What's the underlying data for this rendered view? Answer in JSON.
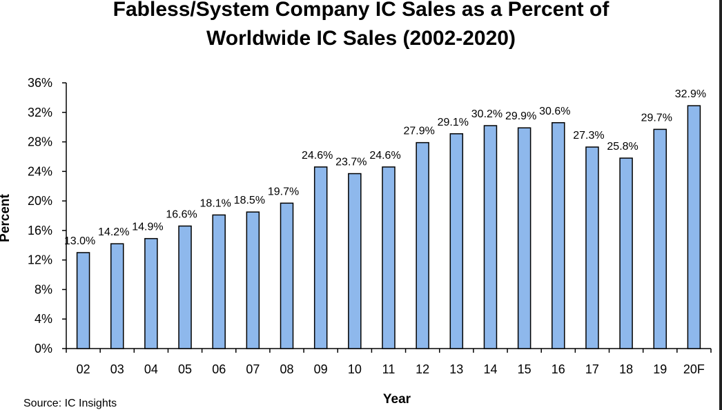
{
  "chart_data": {
    "type": "bar",
    "title_line1": "Fabless/System Company IC Sales as a Percent of",
    "title_line2": "Worldwide IC Sales (2002-2020)",
    "xlabel": "Year",
    "ylabel": "Percent",
    "ylim": [
      0,
      36
    ],
    "yticks": [
      "0%",
      "4%",
      "8%",
      "12%",
      "16%",
      "20%",
      "24%",
      "28%",
      "32%",
      "36%"
    ],
    "categories": [
      "02",
      "03",
      "04",
      "05",
      "06",
      "07",
      "08",
      "09",
      "10",
      "11",
      "12",
      "13",
      "14",
      "15",
      "16",
      "17",
      "18",
      "19",
      "20F"
    ],
    "values": [
      13.0,
      14.2,
      14.9,
      16.6,
      18.1,
      18.5,
      19.7,
      24.6,
      23.7,
      24.6,
      27.9,
      29.1,
      30.2,
      29.9,
      30.6,
      27.3,
      25.8,
      29.7,
      32.9
    ],
    "data_labels": [
      "13.0%",
      "14.2%",
      "14.9%",
      "16.6%",
      "18.1%",
      "18.5%",
      "19.7%",
      "24.6%",
      "23.7%",
      "24.6%",
      "27.9%",
      "29.1%",
      "30.2%",
      "29.9%",
      "30.6%",
      "27.3%",
      "25.8%",
      "29.7%",
      "32.9%"
    ],
    "bar_color": "#8EB8EC",
    "bar_edge_color": "#000000",
    "grid": false,
    "legend": "none"
  },
  "source": "Source: IC Insights"
}
